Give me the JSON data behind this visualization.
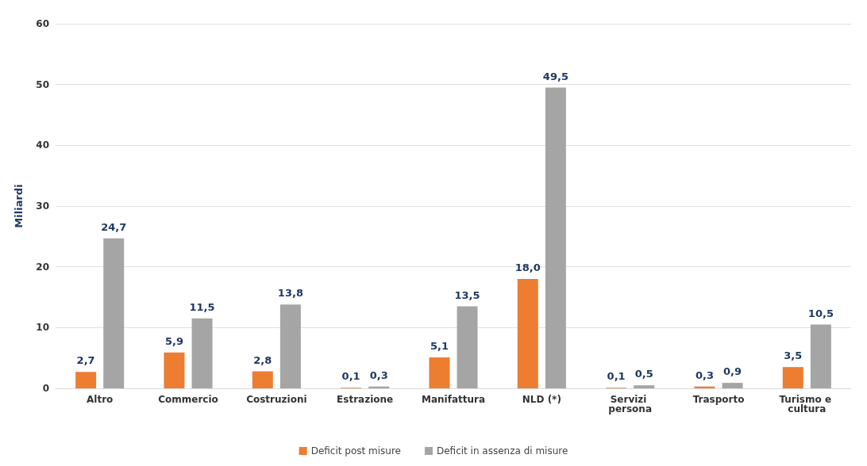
{
  "chart_data": {
    "type": "bar",
    "ylabel": "Miliardi",
    "categories": [
      "Altro",
      "Commercio",
      "Costruzioni",
      "Estrazione",
      "Manifattura",
      "NLD (*)",
      "Servizi persona",
      "Trasporto",
      "Turismo e cultura"
    ],
    "series": [
      {
        "name": "Deficit post misure",
        "color": "#ed7d31",
        "values": [
          2.7,
          5.9,
          2.8,
          0.1,
          5.1,
          18.0,
          0.1,
          0.3,
          3.5
        ],
        "value_labels": [
          "2,7",
          "5,9",
          "2,8",
          "0,1",
          "5,1",
          "18,0",
          "0,1",
          "0,3",
          "3,5"
        ]
      },
      {
        "name": "Deficit in assenza di misure",
        "color": "#a5a5a5",
        "values": [
          24.7,
          11.5,
          13.8,
          0.3,
          13.5,
          49.5,
          0.5,
          0.9,
          10.5
        ],
        "value_labels": [
          "24,7",
          "11,5",
          "13,8",
          "0,3",
          "13,5",
          "49,5",
          "0,5",
          "0,9",
          "10,5"
        ]
      }
    ],
    "ylim": [
      0,
      60
    ],
    "yticks": [
      0,
      10,
      20,
      30,
      40,
      50,
      60
    ],
    "grid": "y",
    "legend": "bottom"
  }
}
